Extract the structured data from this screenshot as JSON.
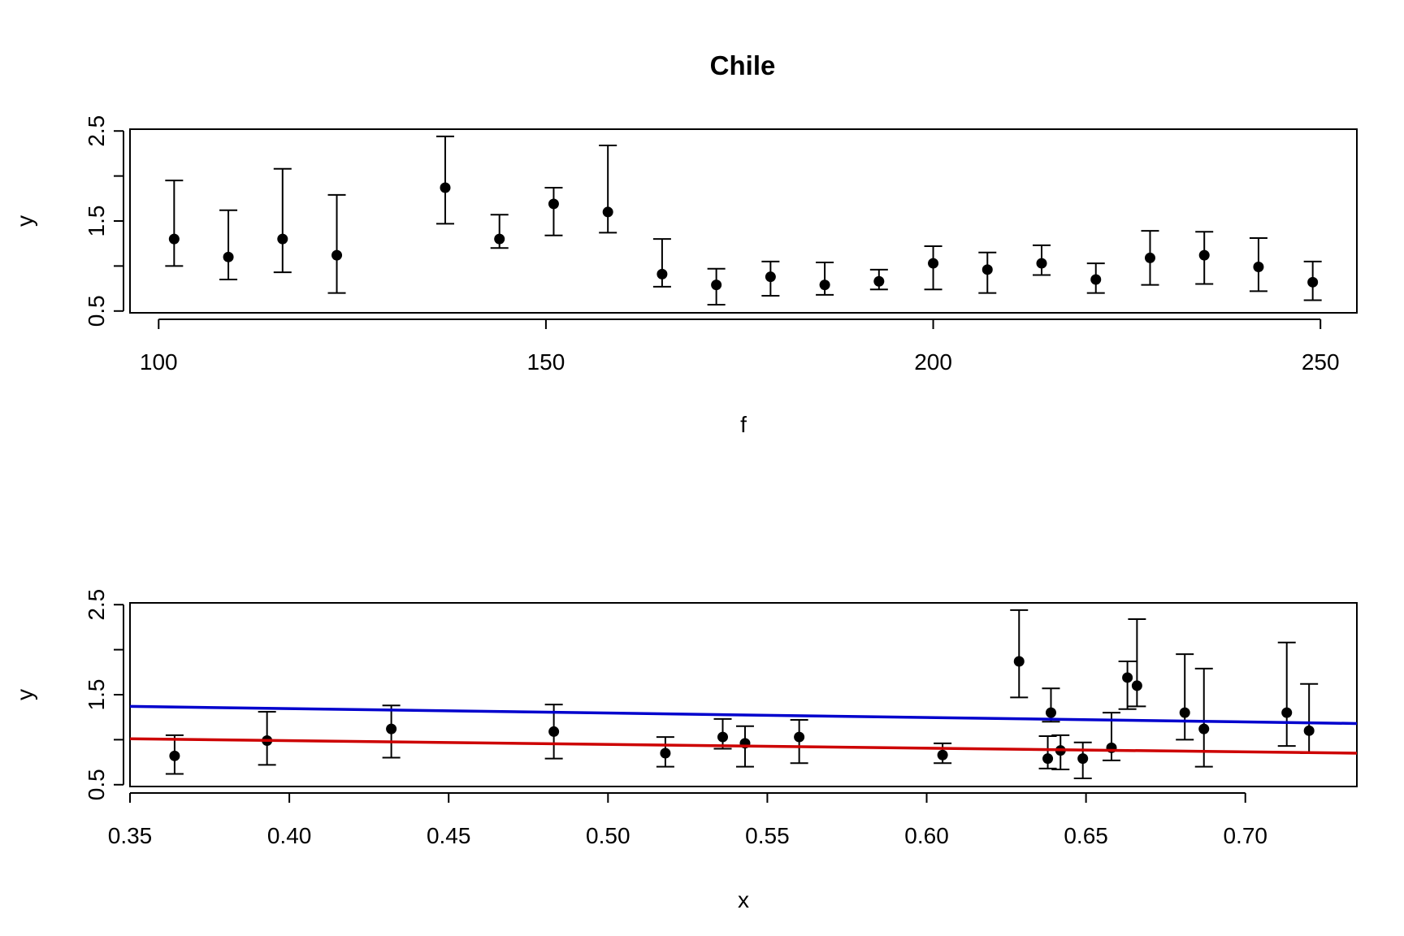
{
  "chart_data": [
    {
      "type": "scatter",
      "title": "Chile",
      "xlabel": "f",
      "ylabel": "y",
      "xlim": [
        96.3,
        254.7
      ],
      "ylim": [
        0.48,
        2.52
      ],
      "xticks": [
        "100",
        "150",
        "200",
        "250"
      ],
      "yticks": [
        "0.5",
        "1.5",
        "2.5"
      ],
      "y_minor_ticks": [
        1.0,
        2.0
      ],
      "series": [
        {
          "points": [
            {
              "x": 102,
              "y": 1.3,
              "lo": 1.0,
              "hi": 1.95
            },
            {
              "x": 109,
              "y": 1.1,
              "lo": 0.85,
              "hi": 1.62
            },
            {
              "x": 116,
              "y": 1.3,
              "lo": 0.93,
              "hi": 2.08
            },
            {
              "x": 123,
              "y": 1.12,
              "lo": 0.7,
              "hi": 1.79
            },
            {
              "x": 137,
              "y": 1.87,
              "lo": 1.47,
              "hi": 2.44
            },
            {
              "x": 144,
              "y": 1.3,
              "lo": 1.2,
              "hi": 1.57
            },
            {
              "x": 151,
              "y": 1.69,
              "lo": 1.34,
              "hi": 1.87
            },
            {
              "x": 158,
              "y": 1.6,
              "lo": 1.37,
              "hi": 2.34
            },
            {
              "x": 165,
              "y": 0.91,
              "lo": 0.77,
              "hi": 1.3
            },
            {
              "x": 172,
              "y": 0.79,
              "lo": 0.57,
              "hi": 0.97
            },
            {
              "x": 179,
              "y": 0.88,
              "lo": 0.67,
              "hi": 1.05
            },
            {
              "x": 186,
              "y": 0.79,
              "lo": 0.68,
              "hi": 1.04
            },
            {
              "x": 193,
              "y": 0.83,
              "lo": 0.74,
              "hi": 0.96
            },
            {
              "x": 200,
              "y": 1.03,
              "lo": 0.74,
              "hi": 1.22
            },
            {
              "x": 207,
              "y": 0.96,
              "lo": 0.7,
              "hi": 1.15
            },
            {
              "x": 214,
              "y": 1.03,
              "lo": 0.9,
              "hi": 1.23
            },
            {
              "x": 221,
              "y": 0.85,
              "lo": 0.7,
              "hi": 1.03
            },
            {
              "x": 228,
              "y": 1.09,
              "lo": 0.79,
              "hi": 1.39
            },
            {
              "x": 235,
              "y": 1.12,
              "lo": 0.8,
              "hi": 1.38
            },
            {
              "x": 242,
              "y": 0.99,
              "lo": 0.72,
              "hi": 1.31
            },
            {
              "x": 249,
              "y": 0.82,
              "lo": 0.62,
              "hi": 1.05
            }
          ]
        }
      ]
    },
    {
      "type": "scatter",
      "title": "",
      "xlabel": "x",
      "ylabel": "y",
      "xlim": [
        0.35,
        0.735
      ],
      "ylim": [
        0.48,
        2.52
      ],
      "xticks": [
        "0.35",
        "0.40",
        "0.45",
        "0.50",
        "0.55",
        "0.60",
        "0.65",
        "0.70"
      ],
      "yticks": [
        "0.5",
        "1.5",
        "2.5"
      ],
      "y_minor_ticks": [
        1.0,
        2.0
      ],
      "series": [
        {
          "points": [
            {
              "x": 0.364,
              "y": 0.82,
              "lo": 0.62,
              "hi": 1.05
            },
            {
              "x": 0.393,
              "y": 0.99,
              "lo": 0.72,
              "hi": 1.31
            },
            {
              "x": 0.432,
              "y": 1.12,
              "lo": 0.8,
              "hi": 1.38
            },
            {
              "x": 0.483,
              "y": 1.09,
              "lo": 0.79,
              "hi": 1.39
            },
            {
              "x": 0.518,
              "y": 0.85,
              "lo": 0.7,
              "hi": 1.03
            },
            {
              "x": 0.536,
              "y": 1.03,
              "lo": 0.9,
              "hi": 1.23
            },
            {
              "x": 0.543,
              "y": 0.96,
              "lo": 0.7,
              "hi": 1.15
            },
            {
              "x": 0.56,
              "y": 1.03,
              "lo": 0.74,
              "hi": 1.22
            },
            {
              "x": 0.605,
              "y": 0.83,
              "lo": 0.74,
              "hi": 0.96
            },
            {
              "x": 0.629,
              "y": 1.87,
              "lo": 1.47,
              "hi": 2.44
            },
            {
              "x": 0.638,
              "y": 0.79,
              "lo": 0.68,
              "hi": 1.04
            },
            {
              "x": 0.639,
              "y": 1.3,
              "lo": 1.2,
              "hi": 1.57
            },
            {
              "x": 0.642,
              "y": 0.88,
              "lo": 0.67,
              "hi": 1.05
            },
            {
              "x": 0.649,
              "y": 0.79,
              "lo": 0.57,
              "hi": 0.97
            },
            {
              "x": 0.658,
              "y": 0.91,
              "lo": 0.77,
              "hi": 1.3
            },
            {
              "x": 0.663,
              "y": 1.69,
              "lo": 1.34,
              "hi": 1.87
            },
            {
              "x": 0.666,
              "y": 1.6,
              "lo": 1.37,
              "hi": 2.34
            },
            {
              "x": 0.681,
              "y": 1.3,
              "lo": 1.0,
              "hi": 1.95
            },
            {
              "x": 0.687,
              "y": 1.12,
              "lo": 0.7,
              "hi": 1.79
            },
            {
              "x": 0.713,
              "y": 1.3,
              "lo": 0.93,
              "hi": 2.08
            },
            {
              "x": 0.72,
              "y": 1.1,
              "lo": 0.85,
              "hi": 1.62
            }
          ]
        }
      ],
      "lines": [
        {
          "color": "#0000CD",
          "x": [
            0.35,
            0.735
          ],
          "y": [
            1.37,
            1.18
          ]
        },
        {
          "color": "#CD0000",
          "x": [
            0.35,
            0.735
          ],
          "y": [
            1.01,
            0.85
          ]
        }
      ]
    }
  ]
}
